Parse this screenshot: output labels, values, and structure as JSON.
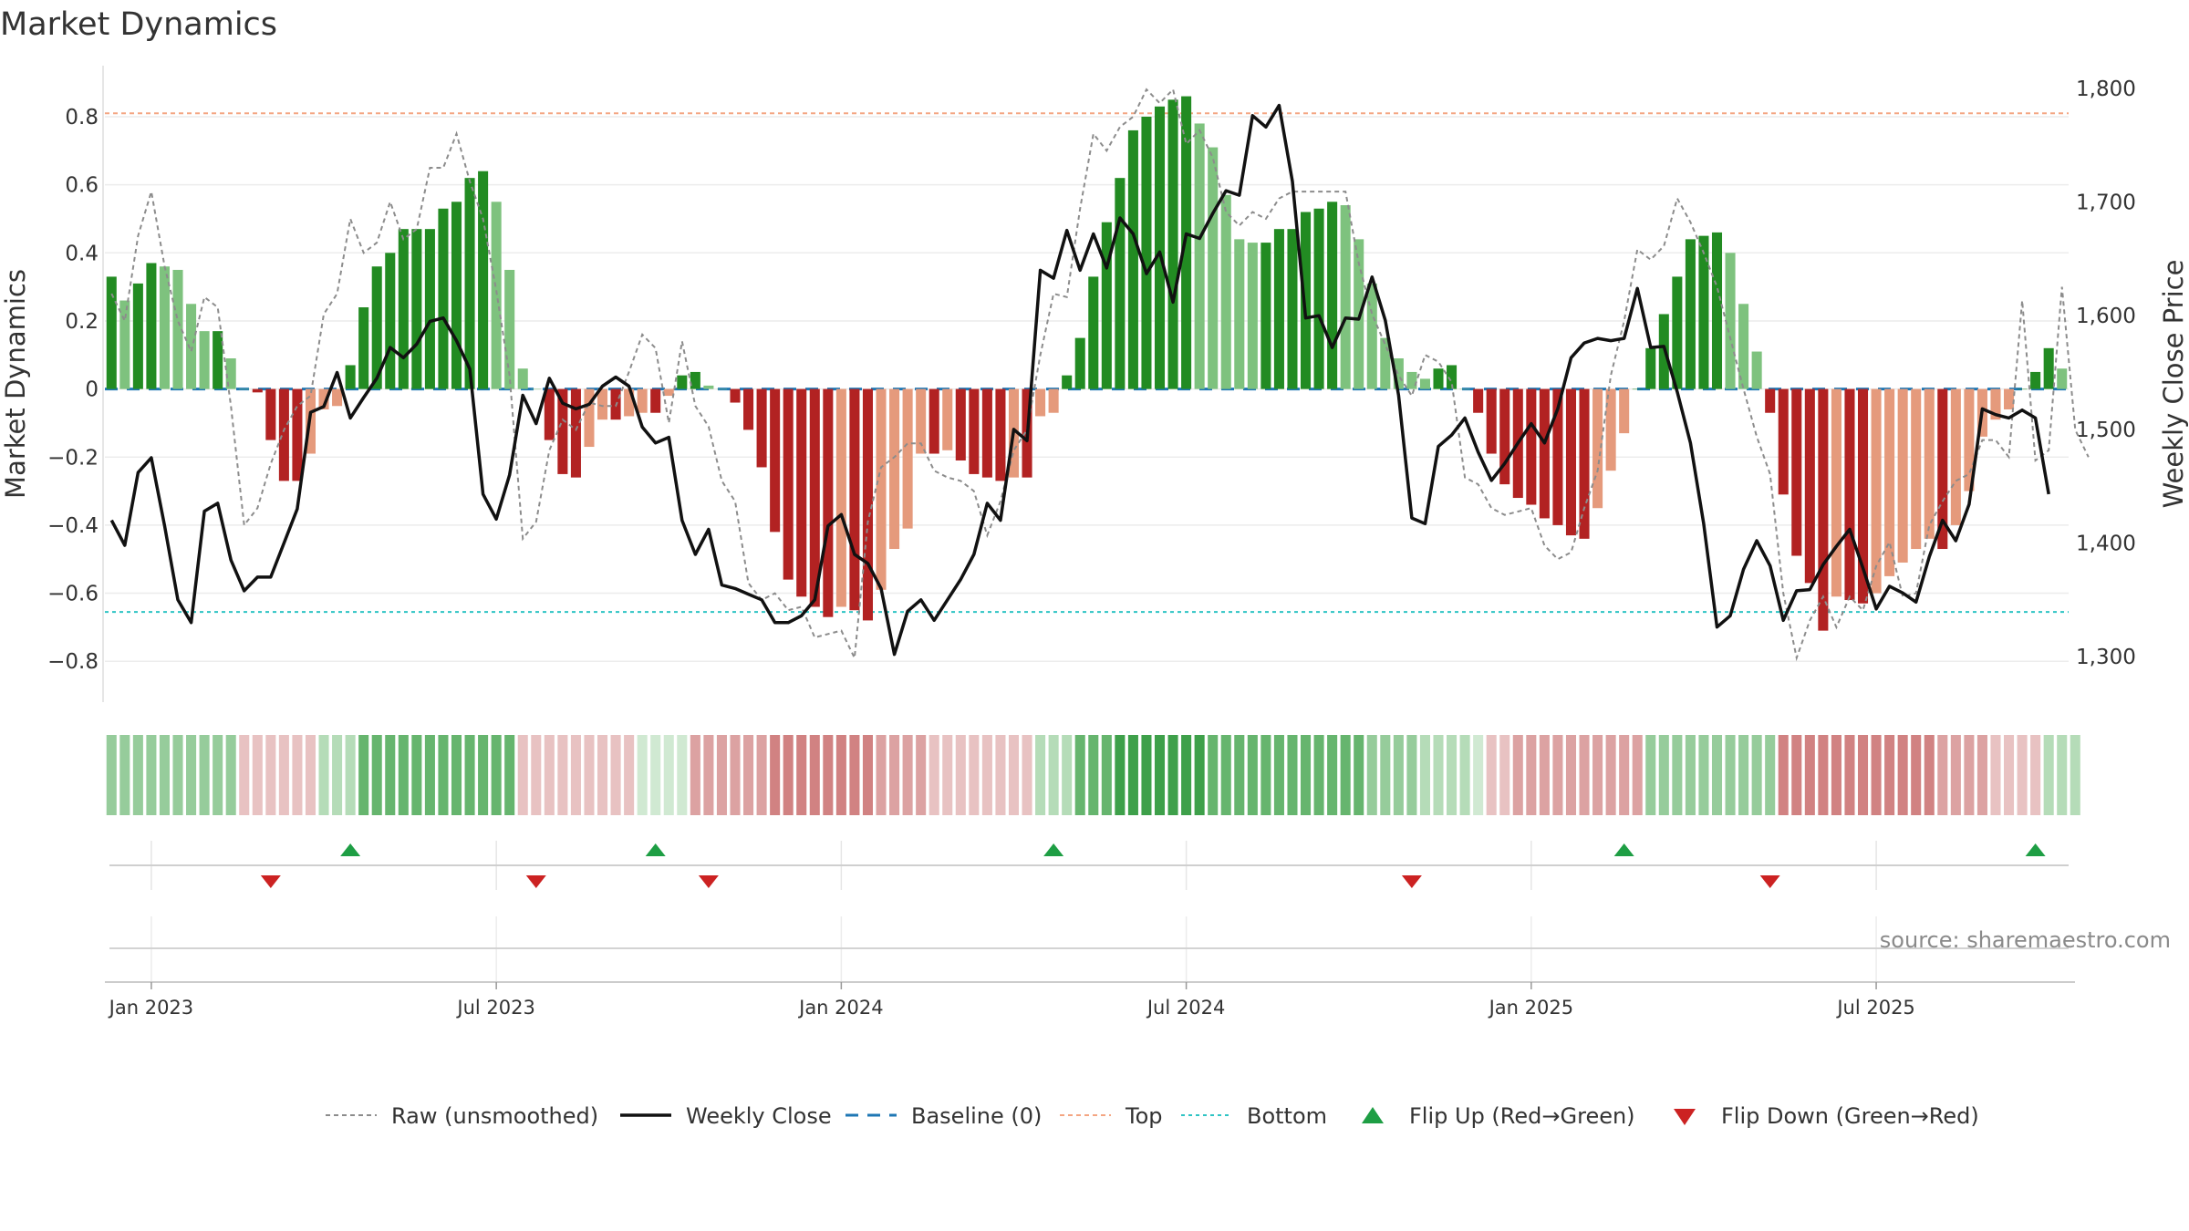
{
  "chart_data": {
    "type": "bar",
    "title": "Market Dynamics",
    "ylabel_left": "Market Dynamics",
    "ylabel_right": "Weekly Close Price",
    "ylim_left": [
      -0.92,
      0.95
    ],
    "ylim_right": [
      1260,
      1820
    ],
    "left_ticks": [
      {
        "value": 0.8,
        "label": "0.8"
      },
      {
        "value": 0.6,
        "label": "0.6"
      },
      {
        "value": 0.4,
        "label": "0.4"
      },
      {
        "value": 0.2,
        "label": "0.2"
      },
      {
        "value": 0.0,
        "label": "0"
      },
      {
        "value": -0.2,
        "label": "−0.2"
      },
      {
        "value": -0.4,
        "label": "−0.4"
      },
      {
        "value": -0.6,
        "label": "−0.6"
      },
      {
        "value": -0.8,
        "label": "−0.8"
      }
    ],
    "right_ticks": [
      {
        "value": 1800,
        "label": "1,800"
      },
      {
        "value": 1700,
        "label": "1,700"
      },
      {
        "value": 1600,
        "label": "1,600"
      },
      {
        "value": 1500,
        "label": "1,500"
      },
      {
        "value": 1400,
        "label": "1,400"
      },
      {
        "value": 1300,
        "label": "1,300"
      }
    ],
    "x_ticks": [
      {
        "week": 3,
        "label": "Jan 2023"
      },
      {
        "week": 29,
        "label": "Jul 2023"
      },
      {
        "week": 55,
        "label": "Jan 2024"
      },
      {
        "week": 81,
        "label": "Jul 2024"
      },
      {
        "week": 107,
        "label": "Jan 2025"
      },
      {
        "week": 133,
        "label": "Jul 2025"
      }
    ],
    "reference_lines": {
      "baseline": 0,
      "top": 0.81,
      "bottom": -0.655
    },
    "dynamics": [
      0.33,
      0.26,
      0.31,
      0.37,
      0.36,
      0.35,
      0.25,
      0.17,
      0.17,
      0.09,
      0.0,
      -0.01,
      -0.15,
      -0.27,
      -0.27,
      -0.19,
      -0.06,
      -0.05,
      0.07,
      0.24,
      0.36,
      0.4,
      0.47,
      0.47,
      0.47,
      0.53,
      0.55,
      0.62,
      0.64,
      0.55,
      0.35,
      0.06,
      0.0,
      -0.15,
      -0.25,
      -0.26,
      -0.17,
      -0.09,
      -0.09,
      -0.08,
      -0.07,
      -0.07,
      -0.02,
      0.04,
      0.05,
      0.01,
      0.0,
      -0.04,
      -0.12,
      -0.23,
      -0.42,
      -0.56,
      -0.61,
      -0.64,
      -0.67,
      -0.64,
      -0.65,
      -0.68,
      -0.59,
      -0.47,
      -0.41,
      -0.19,
      -0.19,
      -0.18,
      -0.21,
      -0.25,
      -0.26,
      -0.27,
      -0.26,
      -0.26,
      -0.08,
      -0.07,
      0.04,
      0.15,
      0.33,
      0.49,
      0.62,
      0.76,
      0.8,
      0.83,
      0.85,
      0.86,
      0.78,
      0.71,
      0.57,
      0.44,
      0.43,
      0.43,
      0.47,
      0.47,
      0.52,
      0.53,
      0.55,
      0.54,
      0.44,
      0.31,
      0.15,
      0.09,
      0.05,
      0.03,
      0.06,
      0.07,
      0.0,
      -0.07,
      -0.19,
      -0.28,
      -0.32,
      -0.34,
      -0.38,
      -0.4,
      -0.43,
      -0.44,
      -0.35,
      -0.24,
      -0.13,
      0.0,
      0.12,
      0.22,
      0.33,
      0.44,
      0.45,
      0.46,
      0.4,
      0.25,
      0.11,
      -0.07,
      -0.31,
      -0.49,
      -0.57,
      -0.71,
      -0.61,
      -0.62,
      -0.63,
      -0.6,
      -0.55,
      -0.51,
      -0.47,
      -0.44,
      -0.47,
      -0.4,
      -0.3,
      -0.14,
      -0.09,
      -0.06,
      0.0,
      0.05,
      0.12,
      0.06
    ],
    "raw_unsmoothed": [
      0.28,
      0.2,
      0.45,
      0.58,
      0.36,
      0.2,
      0.11,
      0.27,
      0.24,
      -0.05,
      -0.4,
      -0.35,
      -0.22,
      -0.12,
      -0.05,
      -0.02,
      0.22,
      0.28,
      0.5,
      0.4,
      0.43,
      0.55,
      0.44,
      0.47,
      0.65,
      0.65,
      0.75,
      0.61,
      0.5,
      0.29,
      0.04,
      -0.44,
      -0.39,
      -0.18,
      -0.09,
      -0.12,
      -0.04,
      -0.05,
      -0.05,
      0.05,
      0.16,
      0.12,
      -0.1,
      0.14,
      -0.05,
      -0.11,
      -0.27,
      -0.33,
      -0.57,
      -0.62,
      -0.6,
      -0.65,
      -0.64,
      -0.73,
      -0.72,
      -0.71,
      -0.79,
      -0.39,
      -0.23,
      -0.2,
      -0.16,
      -0.16,
      -0.24,
      -0.26,
      -0.27,
      -0.3,
      -0.43,
      -0.33,
      -0.18,
      -0.12,
      0.1,
      0.28,
      0.27,
      0.53,
      0.75,
      0.7,
      0.77,
      0.8,
      0.88,
      0.84,
      0.88,
      0.72,
      0.76,
      0.68,
      0.52,
      0.48,
      0.52,
      0.5,
      0.56,
      0.58,
      0.58,
      0.58,
      0.58,
      0.58,
      0.37,
      0.22,
      0.13,
      0.04,
      -0.02,
      0.1,
      0.08,
      0.02,
      -0.26,
      -0.28,
      -0.35,
      -0.37,
      -0.36,
      -0.35,
      -0.46,
      -0.5,
      -0.48,
      -0.35,
      -0.24,
      0.04,
      0.2,
      0.41,
      0.38,
      0.42,
      0.56,
      0.49,
      0.4,
      0.3,
      0.15,
      0.0,
      -0.14,
      -0.25,
      -0.6,
      -0.79,
      -0.68,
      -0.61,
      -0.7,
      -0.61,
      -0.65,
      -0.52,
      -0.45,
      -0.61,
      -0.6,
      -0.4,
      -0.33,
      -0.27,
      -0.25,
      -0.15,
      -0.15,
      -0.2,
      0.26,
      -0.21,
      -0.18,
      0.3,
      -0.12,
      -0.2
    ],
    "weekly_close": [
      1420,
      1398,
      1462,
      1475,
      1415,
      1350,
      1330,
      1428,
      1435,
      1385,
      1358,
      1370,
      1370,
      1400,
      1430,
      1515,
      1520,
      1550,
      1510,
      1528,
      1545,
      1572,
      1563,
      1575,
      1595,
      1598,
      1578,
      1553,
      1443,
      1421,
      1460,
      1530,
      1505,
      1545,
      1523,
      1518,
      1522,
      1538,
      1546,
      1538,
      1502,
      1488,
      1493,
      1420,
      1390,
      1412,
      1363,
      1360,
      1355,
      1350,
      1330,
      1330,
      1336,
      1350,
      1415,
      1425,
      1390,
      1382,
      1360,
      1302,
      1340,
      1350,
      1332,
      1350,
      1368,
      1390,
      1435,
      1420,
      1500,
      1490,
      1640,
      1633,
      1675,
      1640,
      1672,
      1642,
      1686,
      1672,
      1637,
      1656,
      1612,
      1672,
      1668,
      1690,
      1710,
      1706,
      1776,
      1766,
      1785,
      1718,
      1598,
      1600,
      1572,
      1598,
      1597,
      1634,
      1596,
      1530,
      1422,
      1417,
      1485,
      1495,
      1510,
      1480,
      1455,
      1470,
      1488,
      1505,
      1488,
      1518,
      1563,
      1576,
      1580,
      1578,
      1580,
      1624,
      1572,
      1573,
      1533,
      1488,
      1417,
      1326,
      1336,
      1377,
      1402,
      1380,
      1332,
      1358,
      1359,
      1381,
      1397,
      1412,
      1378,
      1342,
      1362,
      1356,
      1348,
      1388,
      1420,
      1402,
      1434,
      1518,
      1513,
      1510,
      1517,
      1510,
      1443
    ],
    "regime_strips": [
      2,
      2,
      2,
      2,
      2,
      2,
      2,
      2,
      2,
      2,
      -1,
      -1,
      -1,
      -1,
      -1,
      -1,
      1,
      1,
      1,
      3,
      3,
      3,
      3,
      3,
      3,
      3,
      3,
      3,
      3,
      3,
      3,
      -1,
      -1,
      -1,
      -1,
      -1,
      -1,
      -1,
      -1,
      -1,
      0,
      0,
      0,
      0,
      -2,
      -2,
      -2,
      -2,
      -2,
      -2,
      -3,
      -3,
      -3,
      -3,
      -3,
      -3,
      -3,
      -3,
      -2,
      -2,
      -2,
      -2,
      -1,
      -1,
      -1,
      -1,
      -1,
      -1,
      -1,
      -1,
      1,
      1,
      1,
      3,
      3,
      3,
      4,
      4,
      4,
      4,
      4,
      4,
      4,
      3,
      3,
      3,
      3,
      3,
      3,
      3,
      3,
      3,
      3,
      3,
      3,
      2,
      2,
      2,
      2,
      1,
      1,
      1,
      1,
      0,
      -1,
      -1,
      -2,
      -2,
      -2,
      -2,
      -2,
      -2,
      -2,
      -2,
      -2,
      -2,
      2,
      2,
      2,
      2,
      2,
      2,
      2,
      2,
      2,
      2,
      -3,
      -3,
      -3,
      -3,
      -3,
      -3,
      -3,
      -3,
      -3,
      -3,
      -3,
      -3,
      -2,
      -2,
      -2,
      -2,
      -1,
      -1,
      -1,
      -1,
      1,
      1,
      1
    ],
    "flip_up_weeks": [
      18,
      41,
      71,
      114,
      145
    ],
    "flip_down_weeks": [
      12,
      32,
      45,
      98,
      125
    ],
    "legend": [
      "Raw (unsmoothed)",
      "Weekly Close",
      "Baseline (0)",
      "Top",
      "Bottom",
      "Flip Up (Red→Green)",
      "Flip Down (Green→Red)"
    ],
    "source": "source: sharemaestro.com",
    "colors": {
      "strong_pos": "#228b22",
      "weak_pos": "#7ec27e",
      "strong_neg": "#b22222",
      "weak_neg": "#e59a7c",
      "close": "#111111",
      "raw": "#8c8c8c",
      "baseline": "#1f77b4",
      "top": "#f4a582",
      "bottom": "#2ec4c4",
      "flip_up": "#1e9e44",
      "flip_down": "#cc2222",
      "grid": "#ececec"
    }
  }
}
